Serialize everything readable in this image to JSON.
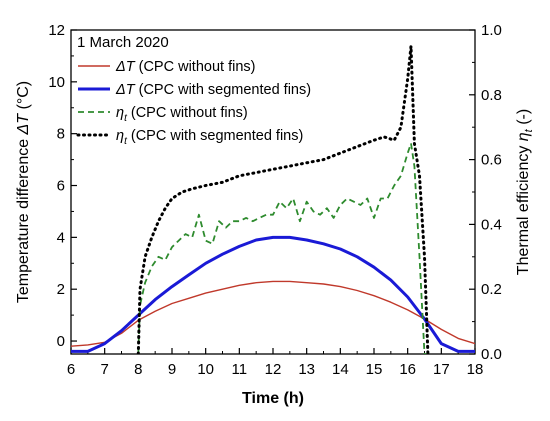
{
  "chart_data": {
    "type": "line",
    "annotation": "1 March 2020",
    "xlabel": "Time (h)",
    "ylabel_left": "Temperature difference ΔT (°C)",
    "ylabel_right": "Thermal efficiency η_t (-)",
    "xlim": [
      6,
      18
    ],
    "ylim_left": [
      -0.5,
      12
    ],
    "ylim_right": [
      0,
      1.0
    ],
    "x_ticks": [
      "6",
      "7",
      "8",
      "9",
      "10",
      "11",
      "12",
      "13",
      "14",
      "15",
      "16",
      "17",
      "18"
    ],
    "y_left_ticks": [
      "0",
      "2",
      "4",
      "6",
      "8",
      "10",
      "12"
    ],
    "y_right_ticks": [
      "0.0",
      "0.2",
      "0.4",
      "0.6",
      "0.8",
      "1.0"
    ],
    "grid": false,
    "legend_placement": "top-left",
    "series": [
      {
        "name": "ΔT (CPC without fins)",
        "name_symbol": "ΔT",
        "name_rest": " (CPC without fins)",
        "axis": "left",
        "style": "solid",
        "color": "#c0392b",
        "x": [
          6,
          6.5,
          7,
          7.5,
          8,
          8.5,
          9,
          9.5,
          10,
          10.5,
          11,
          11.5,
          12,
          12.5,
          13,
          13.5,
          14,
          14.5,
          15,
          15.5,
          16,
          16.5,
          17,
          17.5,
          18
        ],
        "values": [
          -0.2,
          -0.15,
          -0.05,
          0.3,
          0.8,
          1.15,
          1.45,
          1.65,
          1.85,
          2.0,
          2.15,
          2.25,
          2.3,
          2.3,
          2.25,
          2.2,
          2.1,
          1.95,
          1.75,
          1.5,
          1.2,
          0.85,
          0.45,
          0.1,
          -0.1
        ]
      },
      {
        "name": "ΔT (CPC with segmented fins)",
        "name_symbol": "ΔT",
        "name_rest": " (CPC with segmented fins)",
        "axis": "left",
        "style": "solid-thick",
        "color": "#1a1ad6",
        "x": [
          6,
          6.5,
          7,
          7.5,
          8,
          8.5,
          9,
          9.5,
          10,
          10.5,
          11,
          11.5,
          12,
          12.5,
          13,
          13.5,
          14,
          14.5,
          15,
          15.5,
          16,
          16.5,
          17,
          17.5,
          18
        ],
        "values": [
          -0.4,
          -0.4,
          -0.1,
          0.4,
          1.0,
          1.6,
          2.1,
          2.55,
          3.0,
          3.35,
          3.65,
          3.9,
          4.0,
          4.0,
          3.9,
          3.75,
          3.55,
          3.25,
          2.85,
          2.35,
          1.7,
          0.85,
          -0.1,
          -0.4,
          -0.4
        ]
      },
      {
        "name": "η_t (CPC without fins)",
        "name_symbol": "η",
        "name_sub": "t",
        "name_rest": " (CPC without fins)",
        "axis": "right",
        "style": "dashed",
        "color": "#2e8b2e",
        "x": [
          8.0,
          8.05,
          8.2,
          8.4,
          8.6,
          8.8,
          9.0,
          9.2,
          9.4,
          9.6,
          9.8,
          10.0,
          10.2,
          10.4,
          10.6,
          10.8,
          11.0,
          11.2,
          11.4,
          11.6,
          11.8,
          12.0,
          12.2,
          12.4,
          12.6,
          12.8,
          13.0,
          13.2,
          13.4,
          13.6,
          13.8,
          14.0,
          14.2,
          14.4,
          14.6,
          14.8,
          15.0,
          15.2,
          15.4,
          15.6,
          15.8,
          16.0,
          16.1,
          16.2,
          16.35,
          16.5,
          16.6,
          16.7
        ],
        "values": [
          0.0,
          0.15,
          0.22,
          0.27,
          0.3,
          0.29,
          0.33,
          0.35,
          0.37,
          0.36,
          0.43,
          0.35,
          0.34,
          0.41,
          0.39,
          0.41,
          0.41,
          0.42,
          0.41,
          0.42,
          0.43,
          0.43,
          0.47,
          0.45,
          0.48,
          0.41,
          0.47,
          0.44,
          0.43,
          0.45,
          0.42,
          0.46,
          0.48,
          0.47,
          0.46,
          0.48,
          0.42,
          0.48,
          0.48,
          0.52,
          0.55,
          0.62,
          0.65,
          0.58,
          0.3,
          0.0,
          0.0,
          0.0
        ]
      },
      {
        "name": "η_t (CPC with segmented fins)",
        "name_symbol": "η",
        "name_sub": "t",
        "name_rest": " (CPC with segmented fins)",
        "axis": "right",
        "style": "dotted",
        "color": "#000000",
        "x": [
          8.0,
          8.05,
          8.2,
          8.4,
          8.6,
          8.8,
          9.0,
          9.3,
          9.6,
          10.0,
          10.5,
          11.0,
          11.5,
          12.0,
          12.5,
          13.0,
          13.5,
          14.0,
          14.5,
          15.0,
          15.3,
          15.6,
          15.8,
          16.0,
          16.1,
          16.2,
          16.35,
          16.5,
          16.6,
          16.7
        ],
        "values": [
          0.0,
          0.2,
          0.3,
          0.36,
          0.41,
          0.45,
          0.48,
          0.5,
          0.51,
          0.52,
          0.53,
          0.55,
          0.56,
          0.57,
          0.58,
          0.59,
          0.6,
          0.62,
          0.64,
          0.66,
          0.67,
          0.66,
          0.7,
          0.85,
          0.95,
          0.65,
          0.55,
          0.3,
          0.0,
          0.0
        ]
      }
    ]
  }
}
